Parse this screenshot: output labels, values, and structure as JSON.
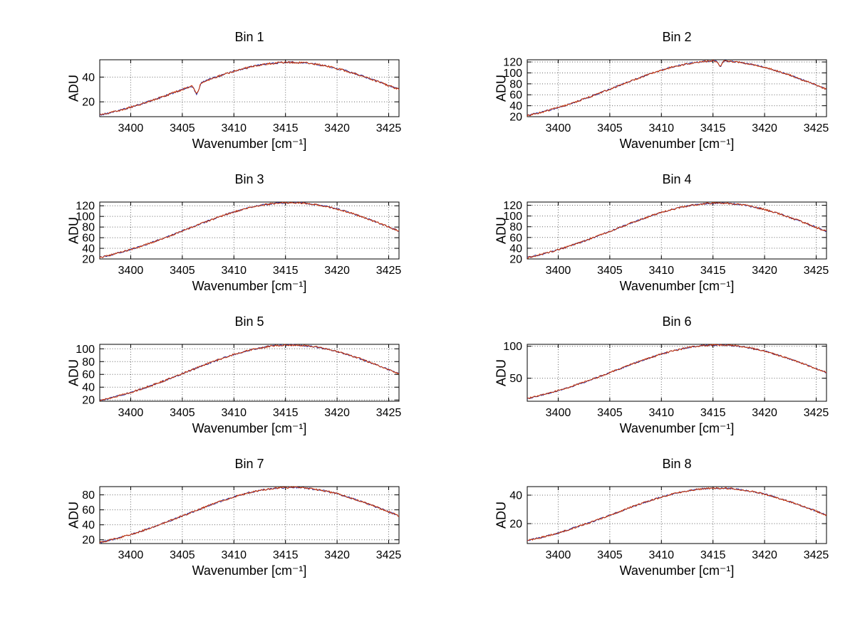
{
  "figure": {
    "background": "#ffffff"
  },
  "colors": {
    "line_primary": "#cc3300",
    "line_secondary": "#2a2a99",
    "grid": "#666666",
    "axis": "#000000"
  },
  "chart_data": [
    {
      "type": "line",
      "title": "Bin 1",
      "xlabel": "Wavenumber [cm⁻¹]",
      "ylabel": "ADU",
      "x_start": 3397,
      "x_step": 1,
      "values": [
        9.4,
        11.2,
        13.3,
        15.6,
        18.2,
        20.9,
        23.8,
        26.8,
        30.0,
        33.1,
        36.2,
        39.2,
        42.1,
        44.7,
        47.0,
        48.9,
        50.4,
        51.4,
        51.9,
        51.9,
        51.4,
        50.4,
        48.9,
        47.0,
        44.7,
        42.1,
        39.2,
        36.2,
        33.1,
        30.0
      ],
      "xlim": [
        3397,
        3426
      ],
      "ylim": [
        8,
        54
      ],
      "xticks": [
        3400,
        3405,
        3410,
        3415,
        3420,
        3425
      ],
      "yticks": [
        20,
        40
      ],
      "dips": [
        {
          "x": 3406.4,
          "depth": 8,
          "width": 0.2
        }
      ],
      "noise_amplitude": 0.8,
      "grid": true
    },
    {
      "type": "line",
      "title": "Bin 2",
      "xlabel": "Wavenumber [cm⁻¹]",
      "ylabel": "ADU",
      "x_start": 3397,
      "x_step": 1,
      "values": [
        22.0,
        26.4,
        31.3,
        36.7,
        42.6,
        49.0,
        55.9,
        63.0,
        70.3,
        77.7,
        85.0,
        92.1,
        98.8,
        104.9,
        110.3,
        114.8,
        118.2,
        120.6,
        121.9,
        121.9,
        120.6,
        118.2,
        114.8,
        110.3,
        104.9,
        98.8,
        92.1,
        85.0,
        77.7,
        70.3
      ],
      "xlim": [
        3397,
        3426
      ],
      "ylim": [
        20,
        124
      ],
      "xticks": [
        3400,
        3405,
        3410,
        3415,
        3420,
        3425
      ],
      "yticks": [
        20,
        40,
        60,
        80,
        100,
        120
      ],
      "dips": [
        {
          "x": 3415.7,
          "depth": 11,
          "width": 0.15
        }
      ],
      "noise_amplitude": 1.6,
      "grid": true
    },
    {
      "type": "line",
      "title": "Bin 3",
      "xlabel": "Wavenumber [cm⁻¹]",
      "ylabel": "ADU",
      "x_start": 3397,
      "x_step": 1,
      "values": [
        22.8,
        27.2,
        32.3,
        37.9,
        44.0,
        50.7,
        57.7,
        65.0,
        72.6,
        80.2,
        87.8,
        95.1,
        102.0,
        108.3,
        113.9,
        118.5,
        122.1,
        124.6,
        125.8,
        125.8,
        124.6,
        122.1,
        118.5,
        113.9,
        108.3,
        102.0,
        95.1,
        87.8,
        80.2,
        72.6
      ],
      "xlim": [
        3397,
        3426
      ],
      "ylim": [
        20,
        127
      ],
      "xticks": [
        3400,
        3405,
        3410,
        3415,
        3420,
        3425
      ],
      "yticks": [
        20,
        40,
        60,
        80,
        100,
        120
      ],
      "dips": [],
      "noise_amplitude": 1.6,
      "grid": true
    },
    {
      "type": "line",
      "title": "Bin 4",
      "xlabel": "Wavenumber [cm⁻¹]",
      "ylabel": "ADU",
      "x_start": 3397,
      "x_step": 1,
      "values": [
        22.4,
        26.8,
        31.8,
        37.3,
        43.3,
        49.8,
        56.8,
        64.0,
        71.4,
        79.0,
        86.4,
        93.6,
        100.4,
        106.6,
        112.1,
        116.6,
        120.2,
        122.6,
        123.9,
        123.9,
        122.6,
        120.2,
        116.6,
        112.1,
        106.6,
        100.4,
        93.6,
        86.4,
        79.0,
        71.4
      ],
      "xlim": [
        3397,
        3426
      ],
      "ylim": [
        20,
        126
      ],
      "xticks": [
        3400,
        3405,
        3410,
        3415,
        3420,
        3425
      ],
      "yticks": [
        20,
        40,
        60,
        80,
        100,
        120
      ],
      "dips": [],
      "noise_amplitude": 1.6,
      "grid": true
    },
    {
      "type": "line",
      "title": "Bin 5",
      "xlabel": "Wavenumber [cm⁻¹]",
      "ylabel": "ADU",
      "x_start": 3397,
      "x_step": 1,
      "values": [
        19.1,
        22.9,
        27.2,
        31.9,
        37.0,
        42.6,
        48.5,
        54.7,
        61.1,
        67.5,
        73.9,
        80.0,
        85.8,
        91.1,
        95.8,
        99.7,
        102.7,
        104.8,
        105.9,
        105.9,
        104.8,
        102.7,
        99.7,
        95.8,
        91.1,
        85.8,
        80.0,
        73.9,
        67.5,
        61.1
      ],
      "xlim": [
        3397,
        3426
      ],
      "ylim": [
        18,
        107
      ],
      "xticks": [
        3400,
        3405,
        3410,
        3415,
        3420,
        3425
      ],
      "yticks": [
        20,
        40,
        60,
        80,
        100
      ],
      "dips": [],
      "noise_amplitude": 1.4,
      "grid": true
    },
    {
      "type": "line",
      "title": "Bin 6",
      "xlabel": "Wavenumber [cm⁻¹]",
      "ylabel": "ADU",
      "x_start": 3397,
      "x_step": 1,
      "values": [
        18.4,
        22.1,
        26.1,
        30.7,
        35.7,
        41.0,
        46.7,
        52.7,
        58.8,
        65.0,
        71.1,
        77.0,
        82.6,
        87.7,
        92.2,
        95.9,
        98.9,
        100.9,
        101.9,
        101.9,
        100.9,
        98.9,
        95.9,
        92.2,
        87.7,
        82.6,
        77.0,
        71.1,
        65.0,
        58.8
      ],
      "xlim": [
        3397,
        3426
      ],
      "ylim": [
        14,
        103
      ],
      "xticks": [
        3400,
        3405,
        3410,
        3415,
        3420,
        3425
      ],
      "yticks": [
        50,
        100
      ],
      "dips": [],
      "noise_amplitude": 1.3,
      "grid": true
    },
    {
      "type": "line",
      "title": "Bin 7",
      "xlabel": "Wavenumber [cm⁻¹]",
      "ylabel": "ADU",
      "x_start": 3397,
      "x_step": 1,
      "values": [
        16.3,
        19.5,
        23.1,
        27.1,
        31.5,
        36.2,
        41.2,
        46.5,
        51.9,
        57.3,
        62.7,
        67.9,
        72.9,
        77.4,
        81.3,
        84.7,
        87.2,
        89.0,
        89.9,
        89.9,
        89.0,
        87.2,
        84.7,
        81.3,
        77.4,
        72.9,
        67.9,
        62.7,
        57.3,
        51.9
      ],
      "xlim": [
        3397,
        3426
      ],
      "ylim": [
        15,
        91
      ],
      "xticks": [
        3400,
        3405,
        3410,
        3415,
        3420,
        3425
      ],
      "yticks": [
        20,
        40,
        60,
        80
      ],
      "dips": [],
      "noise_amplitude": 1.2,
      "grid": true
    },
    {
      "type": "line",
      "title": "Bin 8",
      "xlabel": "Wavenumber [cm⁻¹]",
      "ylabel": "ADU",
      "x_start": 3397,
      "x_step": 1,
      "values": [
        8.1,
        9.7,
        11.5,
        13.5,
        15.7,
        18.1,
        20.6,
        23.2,
        25.9,
        28.7,
        31.4,
        34.0,
        36.4,
        38.7,
        40.7,
        42.3,
        43.6,
        44.5,
        44.9,
        44.9,
        44.5,
        43.6,
        42.3,
        40.7,
        38.7,
        36.4,
        34.0,
        31.4,
        28.7,
        25.9
      ],
      "xlim": [
        3397,
        3426
      ],
      "ylim": [
        6,
        46
      ],
      "xticks": [
        3400,
        3405,
        3410,
        3415,
        3420,
        3425
      ],
      "yticks": [
        20,
        40
      ],
      "dips": [],
      "noise_amplitude": 0.6,
      "grid": true
    }
  ]
}
